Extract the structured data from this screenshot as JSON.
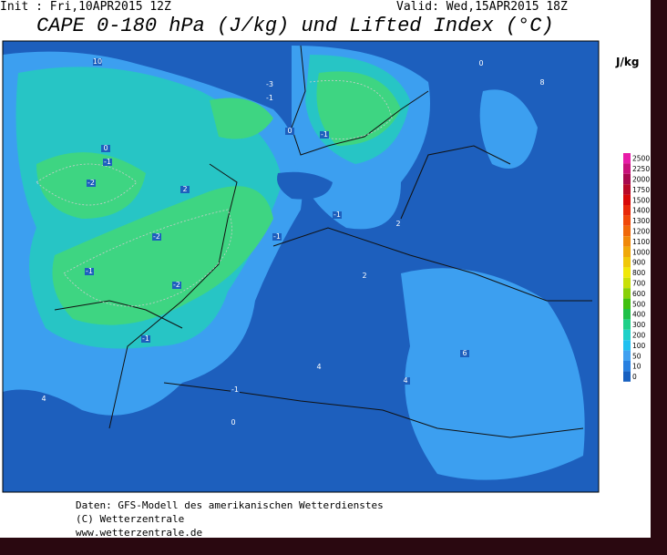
{
  "header": {
    "init": "Init : Fri,10APR2015 12Z",
    "valid": "Valid: Wed,15APR2015 18Z",
    "title": "CAPE 0-180 hPa (J/kg) und Lifted Index (°C)"
  },
  "colorbar": {
    "unit": "J/kg",
    "levels": [
      {
        "label": 2500,
        "color": "#e81ca8"
      },
      {
        "label": 2250,
        "color": "#c8107a"
      },
      {
        "label": 2000,
        "color": "#a8084e"
      },
      {
        "label": 1750,
        "color": "#b80828"
      },
      {
        "label": 1500,
        "color": "#d80808"
      },
      {
        "label": 1400,
        "color": "#e82808"
      },
      {
        "label": 1300,
        "color": "#f04808"
      },
      {
        "label": 1200,
        "color": "#f06808"
      },
      {
        "label": 1100,
        "color": "#f08808"
      },
      {
        "label": 1000,
        "color": "#f0a808"
      },
      {
        "label": 900,
        "color": "#f0c808"
      },
      {
        "label": 800,
        "color": "#f0e808"
      },
      {
        "label": 700,
        "color": "#c8e008"
      },
      {
        "label": 600,
        "color": "#88d008"
      },
      {
        "label": 500,
        "color": "#40c010"
      },
      {
        "label": 400,
        "color": "#20c048"
      },
      {
        "label": 300,
        "color": "#20d088"
      },
      {
        "label": 200,
        "color": "#20d0c8"
      },
      {
        "label": 100,
        "color": "#20c0f0"
      },
      {
        "label": 50,
        "color": "#40a0f0"
      },
      {
        "label": 10,
        "color": "#2880e0"
      },
      {
        "label": 0,
        "color": "#1860c0"
      }
    ]
  },
  "map": {
    "labels": [
      "-2",
      "-1",
      "-1",
      "0",
      "-3",
      "-1",
      "-1",
      "-1",
      "-2",
      "-2",
      "-1",
      "-1",
      "0",
      "2",
      "2",
      "4",
      "4",
      "6",
      "8",
      "10",
      "-1",
      "0",
      "0",
      "2",
      "4"
    ]
  },
  "footer": {
    "source": "Daten: GFS-Modell des amerikanischen Wetterdienstes",
    "copyright": "(C) Wetterzentrale",
    "url": "www.wetterzentrale.de"
  }
}
